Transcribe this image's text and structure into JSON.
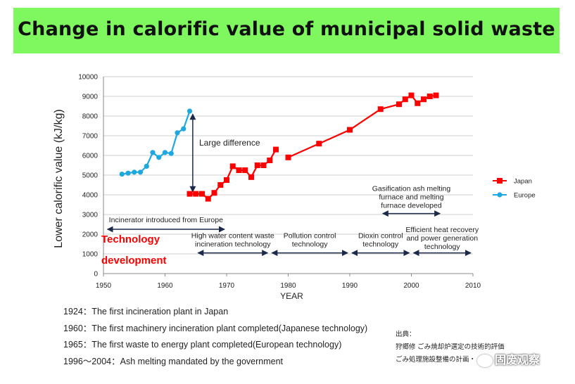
{
  "header": {
    "title": "Change in calorific value of municipal solid waste"
  },
  "chart_data": {
    "type": "line",
    "title": "",
    "xlabel": "YEAR",
    "ylabel": "Lower calorific value (kJ/kg)",
    "xlim": [
      1950,
      2010
    ],
    "ylim": [
      0,
      10000
    ],
    "x_ticks": [
      "1950",
      "1960",
      "1970",
      "1980",
      "1990",
      "2000",
      "2010"
    ],
    "y_ticks": [
      "0",
      "1000",
      "2000",
      "3000",
      "4000",
      "5000",
      "6000",
      "7000",
      "8000",
      "9000",
      "10000"
    ],
    "grid": "horizontal",
    "legend_position": "right",
    "series": [
      {
        "name": "Japan",
        "color": "#ff0000",
        "marker": "square",
        "segments": [
          [
            [
              1964,
              4050
            ],
            [
              1965,
              4050
            ],
            [
              1966,
              4050
            ],
            [
              1967,
              3800
            ],
            [
              1968,
              4100
            ],
            [
              1969,
              4500
            ],
            [
              1970,
              4750
            ],
            [
              1971,
              5450
            ],
            [
              1972,
              5250
            ],
            [
              1973,
              5250
            ],
            [
              1974,
              4900
            ],
            [
              1975,
              5500
            ],
            [
              1976,
              5500
            ],
            [
              1977,
              5750
            ],
            [
              1978,
              6300
            ]
          ],
          [
            [
              1980,
              5900
            ],
            [
              1985,
              6600
            ],
            [
              1990,
              7300
            ],
            [
              1995,
              8350
            ],
            [
              1998,
              8600
            ],
            [
              1999,
              8850
            ],
            [
              2000,
              9050
            ],
            [
              2001,
              8650
            ],
            [
              2002,
              8850
            ],
            [
              2003,
              9000
            ],
            [
              2004,
              9050
            ]
          ]
        ]
      },
      {
        "name": "Europe",
        "color": "#1ea8e0",
        "marker": "circle",
        "segments": [
          [
            [
              1953,
              5050
            ],
            [
              1954,
              5100
            ],
            [
              1955,
              5150
            ],
            [
              1956,
              5150
            ],
            [
              1957,
              5450
            ],
            [
              1958,
              6150
            ],
            [
              1959,
              5900
            ],
            [
              1960,
              6150
            ],
            [
              1961,
              6100
            ],
            [
              1962,
              7150
            ],
            [
              1963,
              7350
            ],
            [
              1964,
              8250
            ]
          ]
        ]
      }
    ],
    "annotations": {
      "large_difference": "Large difference",
      "tech_label_1": "Technology",
      "tech_label_2": "development",
      "phases": [
        {
          "name": "incinerator-europe",
          "lines": [
            "Incinerator introduced from Europe"
          ],
          "from": 1950,
          "to": 1970
        },
        {
          "name": "high-water",
          "lines": [
            "High water content waste",
            "incineration technology"
          ],
          "from": 1965,
          "to": 1977
        },
        {
          "name": "pollution",
          "lines": [
            "Pollution control",
            "technology"
          ],
          "from": 1977,
          "to": 1990
        },
        {
          "name": "dioxin",
          "lines": [
            "Dioxin control",
            "technology"
          ],
          "from": 1990,
          "to": 2000
        },
        {
          "name": "gasification",
          "lines": [
            "Gasification ash melting",
            "furnace and melting",
            "furnace developed"
          ],
          "from": 1995,
          "to": 2005
        },
        {
          "name": "efficient-heat",
          "lines": [
            "Efficient heat recovery",
            "and power generation",
            "technology"
          ],
          "from": 2000,
          "to": 2010
        }
      ]
    }
  },
  "notes": [
    "1924：The first incineration plant in Japan",
    "1960：The first machinery incineration plant completed(Japanese technology)",
    "1965：The first waste to energy plant completed(European technology)",
    "1996～2004：Ash melting mandated by the government"
  ],
  "source": {
    "label": "出典：",
    "lines": [
      "狩郷修 ごみ焼却炉選定の技術的評価",
      "ごみ処理施設整備の計画・"
    ]
  },
  "watermark": "固废观察"
}
